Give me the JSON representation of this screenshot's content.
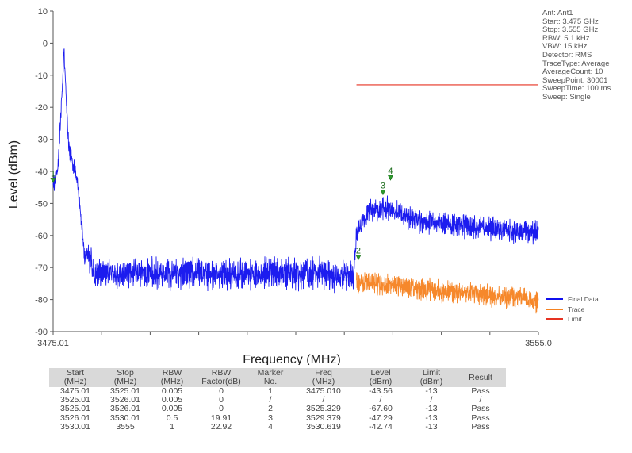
{
  "chart_data": {
    "type": "line",
    "xlabel": "Frequency (MHz)",
    "ylabel": "Level (dBm)",
    "xlim": [
      3475.01,
      3555.0
    ],
    "ylim": [
      -90,
      10
    ],
    "x_tick_labels": [
      "3475.01",
      "3555.0"
    ],
    "y_ticks": [
      10,
      0,
      -10,
      -20,
      -30,
      -40,
      -50,
      -60,
      -70,
      -80,
      -90
    ],
    "grid": false,
    "legend_position": "bottom-right",
    "series": [
      {
        "name": "Final Data",
        "color": "#1010ee",
        "x": [
          3475.01,
          3475.8,
          3476.8,
          3477.6,
          3478.3,
          3479.0,
          3479.7,
          3480.2,
          3480.8,
          3482.0,
          3485.0,
          3490.0,
          3495.0,
          3500.0,
          3505.0,
          3510.0,
          3515.0,
          3520.0,
          3524.5,
          3525.01,
          3527.0,
          3530.0,
          3535.0,
          3540.0,
          3545.0,
          3550.0,
          3555.0
        ],
        "y": [
          -43.6,
          -38.0,
          -2.0,
          -32.0,
          -36.0,
          -42.0,
          -55.0,
          -66.0,
          -65.0,
          -70.0,
          -70.0,
          -70.0,
          -70.0,
          -70.0,
          -70.0,
          -70.0,
          -70.0,
          -70.0,
          -71.0,
          -58.0,
          -51.0,
          -50.0,
          -54.0,
          -55.0,
          -56.0,
          -57.0,
          -58.0
        ]
      },
      {
        "name": "Trace",
        "color": "#f58220",
        "x": [
          3525.01,
          3530.0,
          3535.0,
          3540.0,
          3545.0,
          3550.0,
          3555.0
        ],
        "y": [
          -73.0,
          -74.0,
          -75.0,
          -76.0,
          -77.0,
          -78.0,
          -79.0
        ]
      },
      {
        "name": "Limit",
        "color": "#e63222",
        "x": [
          3525.01,
          3555.0
        ],
        "y": [
          -13.0,
          -13.0
        ]
      }
    ],
    "markers": [
      {
        "label": "1",
        "x": 3475.01,
        "y": -43.56
      },
      {
        "label": "2",
        "x": 3525.329,
        "y": -67.6
      },
      {
        "label": "3",
        "x": 3529.379,
        "y": -47.29
      },
      {
        "label": "4",
        "x": 3530.619,
        "y": -42.74
      }
    ]
  },
  "info_lines": [
    "Ant: Ant1",
    "Start: 3.475 GHz",
    "Stop: 3.555 GHz",
    "RBW: 5.1 kHz",
    "VBW: 15 kHz",
    "Detector: RMS",
    "TraceType: Average",
    "AverageCount: 10",
    "SweepPoint: 30001",
    "SweepTime: 100 ms",
    "Sweep: Single"
  ],
  "table": {
    "headers": [
      "Start\n(MHz)",
      "Stop\n(MHz)",
      "RBW\n(MHz)",
      "RBW\nFactor(dB)",
      "Marker\nNo.",
      "Freq\n(MHz)",
      "Level\n(dBm)",
      "Limit\n(dBm)",
      "Result"
    ],
    "rows": [
      [
        "3475.01",
        "3525.01",
        "0.005",
        "0",
        "1",
        "3475.010",
        "-43.56",
        "-13",
        "Pass"
      ],
      [
        "3525.01",
        "3526.01",
        "0.005",
        "0",
        "/",
        "/",
        "/",
        "/",
        "/"
      ],
      [
        "3525.01",
        "3526.01",
        "0.005",
        "0",
        "2",
        "3525.329",
        "-67.60",
        "-13",
        "Pass"
      ],
      [
        "3526.01",
        "3530.01",
        "0.5",
        "19.91",
        "3",
        "3529.379",
        "-47.29",
        "-13",
        "Pass"
      ],
      [
        "3530.01",
        "3555",
        "1",
        "22.92",
        "4",
        "3530.619",
        "-42.74",
        "-13",
        "Pass"
      ]
    ]
  }
}
